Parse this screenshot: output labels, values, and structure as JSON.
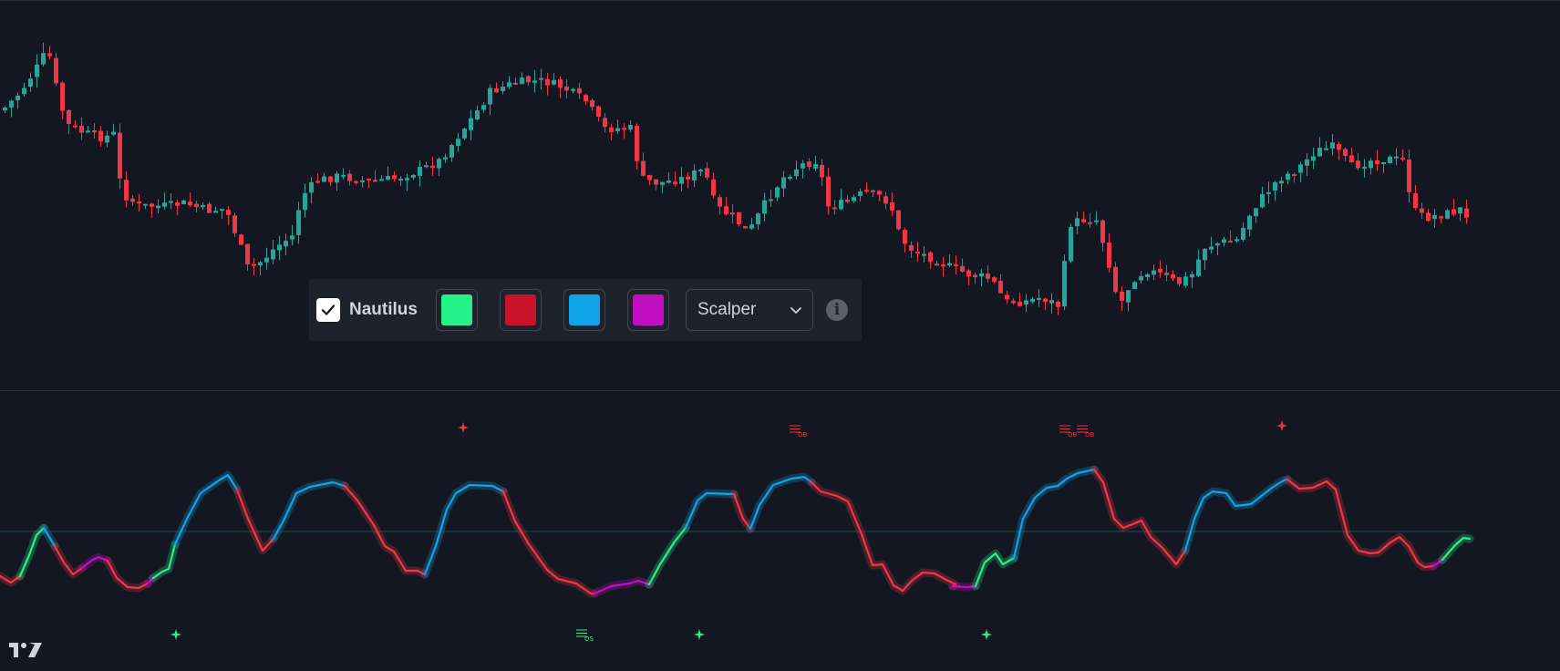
{
  "toolbar": {
    "indicator_name": "Nautilus",
    "enabled": true,
    "swatches": [
      {
        "name": "bull-color",
        "color": "#26f28a"
      },
      {
        "name": "bear-color",
        "color": "#c8142b"
      },
      {
        "name": "up-trend-color",
        "color": "#0ea5e9"
      },
      {
        "name": "down-trend-color",
        "color": "#c20fc2"
      }
    ],
    "mode": "Scalper",
    "icons": {
      "checkbox": "check-icon",
      "dropdown": "chevron-down-icon",
      "info": "info-icon"
    }
  },
  "oscillator": {
    "top_markers": [
      {
        "type": "diamond-x",
        "color": "#f23645",
        "label": ""
      },
      {
        "type": "bars",
        "color": "#f23645",
        "label": "OB"
      },
      {
        "type": "bars",
        "color": "#f23645",
        "label": "OB"
      },
      {
        "type": "bars",
        "color": "#f23645",
        "label": "OB"
      },
      {
        "type": "star",
        "color": "#f23645",
        "label": ""
      }
    ],
    "bottom_markers": [
      {
        "type": "star",
        "color": "#26f28a",
        "label": ""
      },
      {
        "type": "bars",
        "color": "#26f28a",
        "label": "OS"
      },
      {
        "type": "star",
        "color": "#26f28a",
        "label": ""
      },
      {
        "type": "star",
        "color": "#26f28a",
        "label": ""
      }
    ]
  },
  "colors": {
    "background": "#131722",
    "candle_up": "#26a69a",
    "candle_down": "#f23645",
    "osc_bull": "#26f28a",
    "osc_bear": "#f23645",
    "osc_up": "#0ea5e9",
    "osc_down": "#c20fc2"
  },
  "branding": {
    "logo": "tradingview-logo-icon"
  }
}
